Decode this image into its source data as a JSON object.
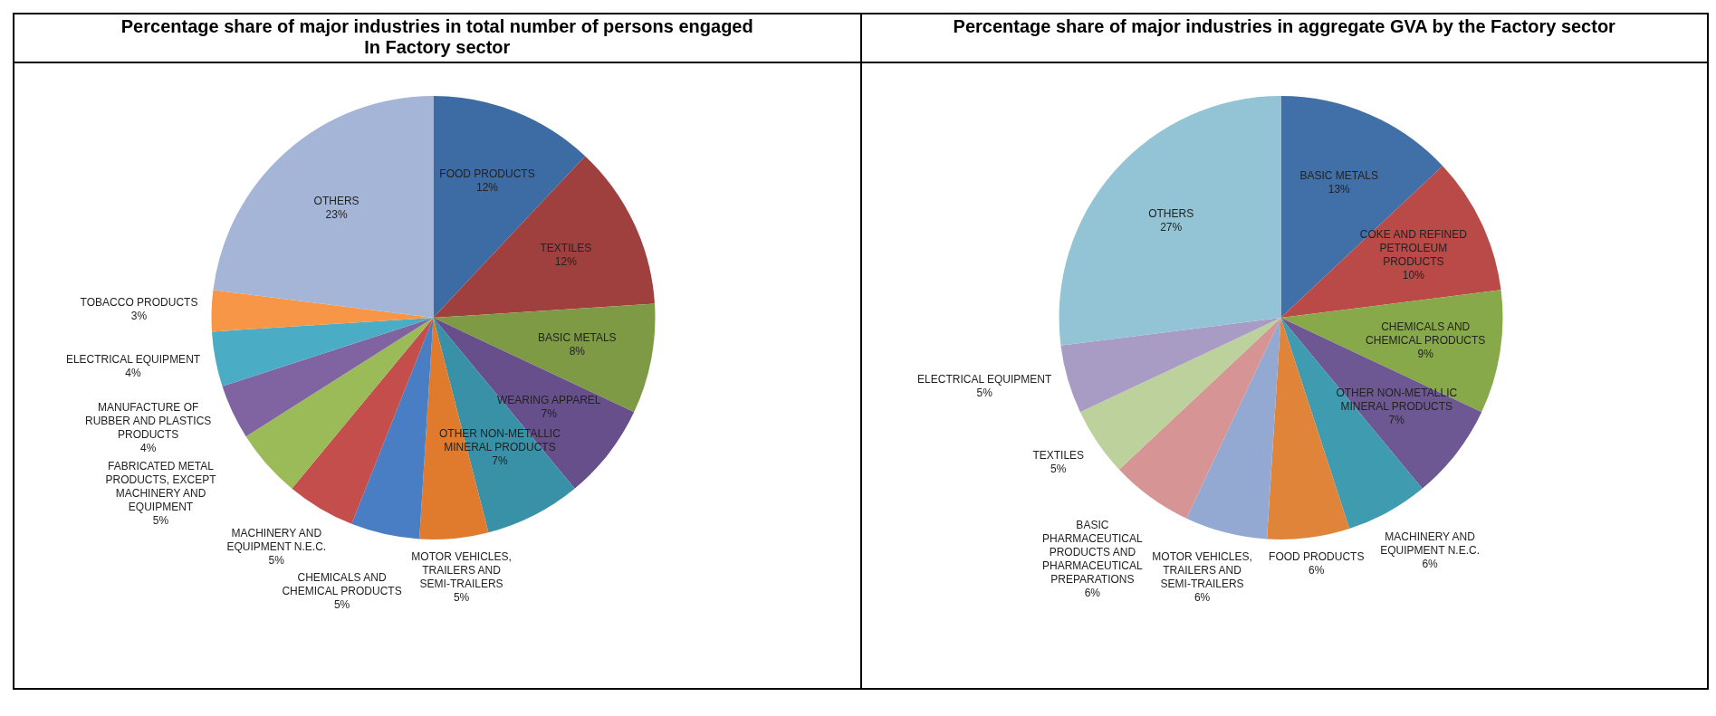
{
  "chart_data": [
    {
      "type": "pie",
      "title": "Percentage share of major industries in total number of persons engaged",
      "subtitle": "In Factory sector",
      "categories": [
        "FOOD PRODUCTS",
        "TEXTILES",
        "BASIC METALS",
        "WEARING APPAREL",
        "OTHER NON-METALLIC MINERAL PRODUCTS",
        "MOTOR VEHICLES, TRAILERS AND SEMI-TRAILERS",
        "CHEMICALS AND CHEMICAL PRODUCTS",
        "MACHINERY AND EQUIPMENT N.E.C.",
        "FABRICATED METAL PRODUCTS, EXCEPT MACHINERY AND EQUIPMENT",
        "MANUFACTURE OF RUBBER AND PLASTICS PRODUCTS",
        "ELECTRICAL EQUIPMENT",
        "TOBACCO PRODUCTS",
        "OTHERS"
      ],
      "values": [
        12,
        12,
        8,
        7,
        7,
        5,
        5,
        5,
        5,
        4,
        4,
        3,
        23
      ],
      "value_labels": [
        "12%",
        "12%",
        "8%",
        "7%",
        "7%",
        "5%",
        "5%",
        "5%",
        "5%",
        "4%",
        "4%",
        "3%",
        "23%"
      ],
      "colors": [
        "#3d6ba3",
        "#a0403e",
        "#7f9a45",
        "#664f8a",
        "#3891a6",
        "#e07b2e",
        "#4a7ec4",
        "#c44e4c",
        "#9bbb59",
        "#8064a2",
        "#4bacc6",
        "#f79646",
        "#a5b5d8"
      ]
    },
    {
      "type": "pie",
      "title": "Percentage share of major industries in aggregate GVA by the Factory sector",
      "categories": [
        "BASIC METALS",
        "COKE AND REFINED PETROLEUM PRODUCTS",
        "CHEMICALS AND CHEMICAL PRODUCTS",
        "OTHER NON-METALLIC MINERAL PRODUCTS",
        "MACHINERY AND EQUIPMENT N.E.C.",
        "FOOD PRODUCTS",
        "MOTOR VEHICLES, TRAILERS AND SEMI-TRAILERS",
        "BASIC PHARMACEUTICAL PRODUCTS AND PHARMACEUTICAL PREPARATIONS",
        "TEXTILES",
        "ELECTRICAL EQUIPMENT",
        "OTHERS"
      ],
      "values": [
        13,
        10,
        9,
        7,
        6,
        6,
        6,
        6,
        5,
        5,
        27
      ],
      "value_labels": [
        "13%",
        "10%",
        "9%",
        "7%",
        "6%",
        "6%",
        "6%",
        "6%",
        "5%",
        "5%",
        "27%"
      ],
      "colors": [
        "#4170a8",
        "#b94a48",
        "#88a94a",
        "#6e5893",
        "#3f9bb0",
        "#e0843a",
        "#94a9d2",
        "#d69594",
        "#bcd19b",
        "#a89cc4",
        "#93c4d5"
      ]
    }
  ]
}
